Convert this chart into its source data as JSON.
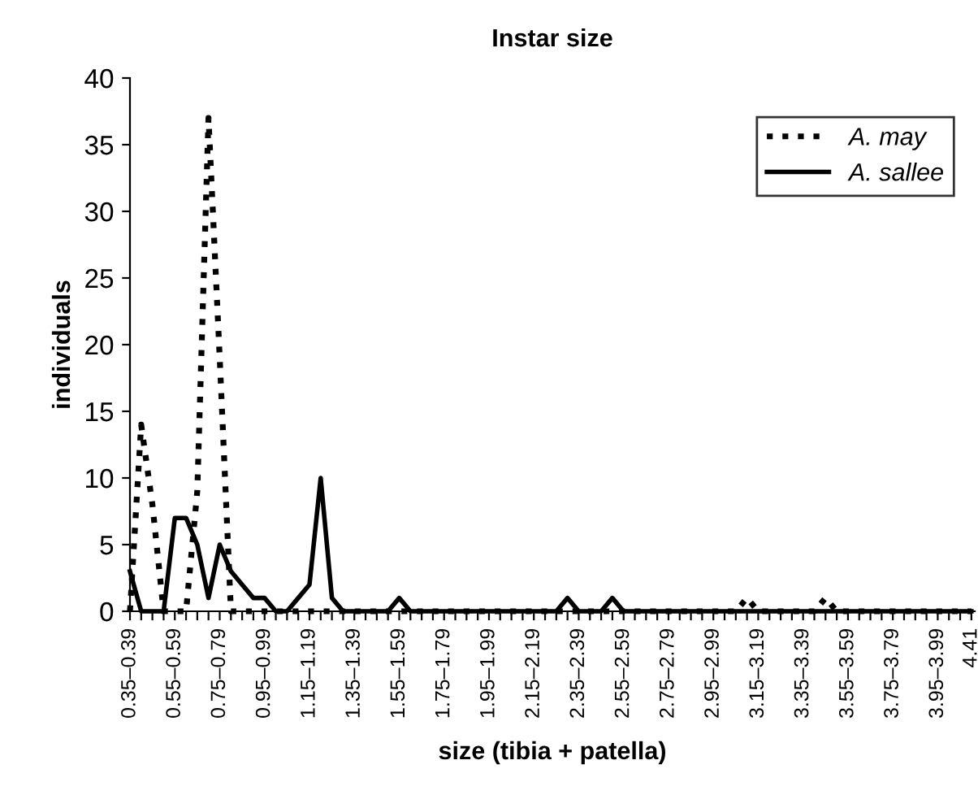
{
  "chart_data": {
    "type": "line",
    "title": "Instar size",
    "xlabel": "size (tibia + patella)",
    "ylabel": "individuals",
    "categories": [
      "0.35–0.39",
      null,
      null,
      null,
      "0.55–0.59",
      null,
      null,
      null,
      "0.75–0.79",
      null,
      null,
      null,
      "0.95–0.99",
      null,
      null,
      null,
      "1.15–1.19",
      null,
      null,
      null,
      "1.35–1.39",
      null,
      null,
      null,
      "1.55–1.59",
      null,
      null,
      null,
      "1.75–1.79",
      null,
      null,
      null,
      "1.95–1.99",
      null,
      null,
      null,
      "2.15–2.19",
      null,
      null,
      null,
      "2.35–2.39",
      null,
      null,
      null,
      "2.55–2.59",
      null,
      null,
      null,
      "2.75–2.79",
      null,
      null,
      null,
      "2.95–2.99",
      null,
      null,
      null,
      "3.15–3.19",
      null,
      null,
      null,
      "3.35–3.39",
      null,
      null,
      null,
      "3.55–3.59",
      null,
      null,
      null,
      "3.75–3.79",
      null,
      null,
      null,
      "3.95–3.99",
      null,
      null,
      "4.41"
    ],
    "series": [
      {
        "name": "A. may",
        "color": "#000000",
        "line_style": "dotted",
        "values": [
          0,
          14,
          8,
          0,
          0,
          0,
          9,
          37,
          19,
          0,
          0,
          0,
          0,
          0,
          0,
          0,
          0,
          0,
          0,
          0,
          0,
          0,
          0,
          0,
          0,
          0,
          0,
          0,
          0,
          0,
          0,
          0,
          0,
          0,
          0,
          0,
          0,
          0,
          0,
          0,
          0,
          0,
          0,
          0,
          0,
          0,
          0,
          0,
          0,
          0,
          0,
          0,
          0,
          0,
          0,
          1,
          0,
          0,
          0,
          0,
          0,
          0,
          1,
          0,
          0,
          0,
          0,
          0,
          0,
          0,
          0,
          0,
          0,
          0,
          0,
          0
        ]
      },
      {
        "name": "A. sallee",
        "color": "#000000",
        "line_style": "solid",
        "values": [
          3,
          0,
          0,
          0,
          7,
          7,
          5,
          1,
          5,
          3,
          2,
          1,
          1,
          0,
          0,
          1,
          2,
          10,
          1,
          0,
          0,
          0,
          0,
          0,
          1,
          0,
          0,
          0,
          0,
          0,
          0,
          0,
          0,
          0,
          0,
          0,
          0,
          0,
          0,
          1,
          0,
          0,
          0,
          1,
          0,
          0,
          0,
          0,
          0,
          0,
          0,
          0,
          0,
          0,
          0,
          0,
          0,
          0,
          0,
          0,
          0,
          0,
          0,
          0,
          0,
          0,
          0,
          0,
          0,
          0,
          0,
          0,
          0,
          0,
          0,
          0
        ]
      }
    ],
    "ylim": [
      0,
      40
    ],
    "yticks": [
      0,
      5,
      10,
      15,
      20,
      25,
      30,
      35,
      40
    ],
    "grid": false,
    "legend": "top right",
    "marker": "none"
  }
}
